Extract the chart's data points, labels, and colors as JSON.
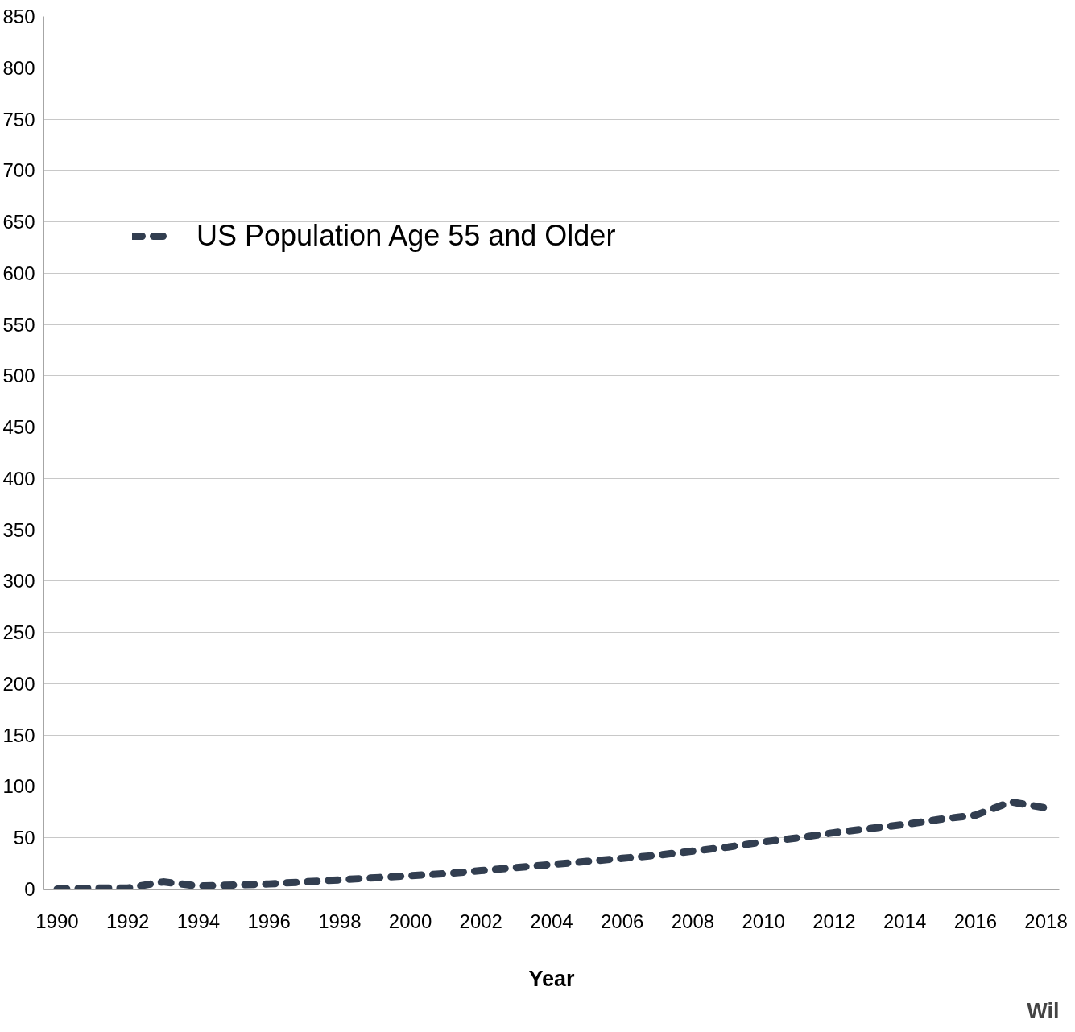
{
  "chart_data": {
    "type": "line",
    "xlabel": "Year",
    "x": [
      1990,
      1991,
      1992,
      1993,
      1994,
      1995,
      1996,
      1997,
      1998,
      1999,
      2000,
      2001,
      2002,
      2003,
      2004,
      2005,
      2006,
      2007,
      2008,
      2009,
      2010,
      2011,
      2012,
      2013,
      2014,
      2015,
      2016,
      2017,
      2018
    ],
    "series": [
      {
        "name": "US Population Age 55 and Older",
        "color": "#323e50",
        "values": [
          0,
          1,
          1,
          7,
          3,
          4,
          5,
          7,
          9,
          11,
          13,
          15,
          18,
          21,
          24,
          27,
          30,
          33,
          37,
          41,
          46,
          50,
          55,
          59,
          63,
          68,
          72,
          85,
          79
        ]
      }
    ],
    "xlim": [
      1989.625,
      2018.375
    ],
    "xticks": [
      1990,
      1992,
      1994,
      1996,
      1998,
      2000,
      2002,
      2004,
      2006,
      2008,
      2010,
      2012,
      2014,
      2016,
      2018
    ],
    "ylim": [
      0,
      850
    ],
    "yticks": [
      0,
      50,
      100,
      150,
      200,
      250,
      300,
      350,
      400,
      450,
      500,
      550,
      600,
      650,
      700,
      750,
      800,
      850
    ],
    "grid": "y",
    "legend": "top left",
    "line_style": "dashed",
    "marker": "none",
    "annotations": [
      "Wil"
    ]
  }
}
